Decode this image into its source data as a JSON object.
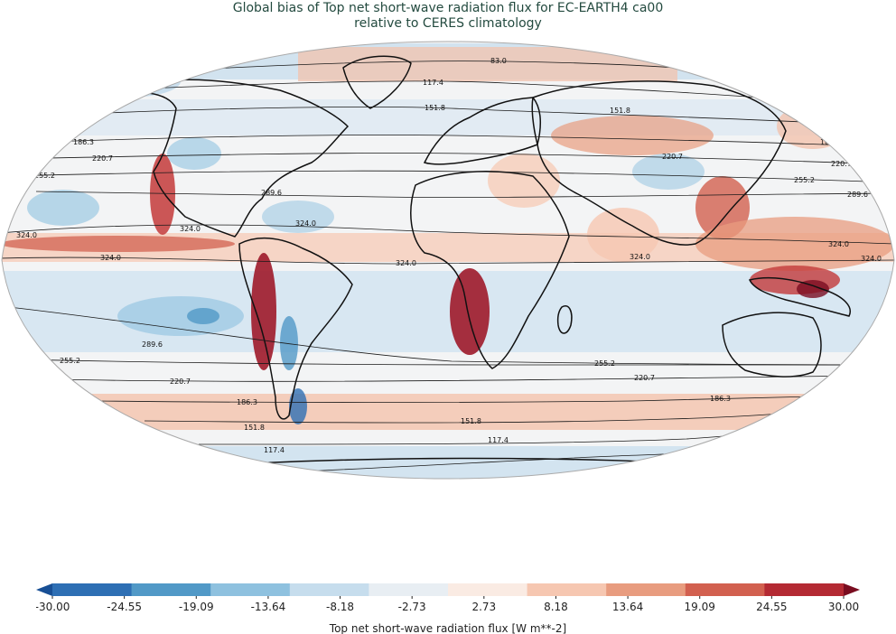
{
  "title": {
    "line1": "Global bias of Top net short-wave radiation flux for EC-EARTH4 ca00",
    "line2": "relative to CERES climatology"
  },
  "contours": [
    {
      "value": "83.0"
    },
    {
      "value": "117.4"
    },
    {
      "value": "151.8"
    },
    {
      "value": "186.3"
    },
    {
      "value": "220.7"
    },
    {
      "value": "255.2"
    },
    {
      "value": "289.6"
    },
    {
      "value": "324.0"
    }
  ],
  "colorbar": {
    "ticks": [
      "-30.00",
      "-24.55",
      "-19.09",
      "-13.64",
      "-8.18",
      "-2.73",
      "2.73",
      "8.18",
      "13.64",
      "19.09",
      "24.55",
      "30.00"
    ],
    "colors": [
      "#184f95",
      "#2e6fb4",
      "#5199c7",
      "#8ec1df",
      "#c6dded",
      "#e8eef3",
      "#faebe3",
      "#f6c7b1",
      "#e89c7f",
      "#d2604f",
      "#b42a33",
      "#7a0d20"
    ],
    "label": "Top net short-wave radiation flux [W m**-2]"
  },
  "colors": {
    "ocean_base": "#f2f4f6",
    "title": "#234a3f"
  }
}
